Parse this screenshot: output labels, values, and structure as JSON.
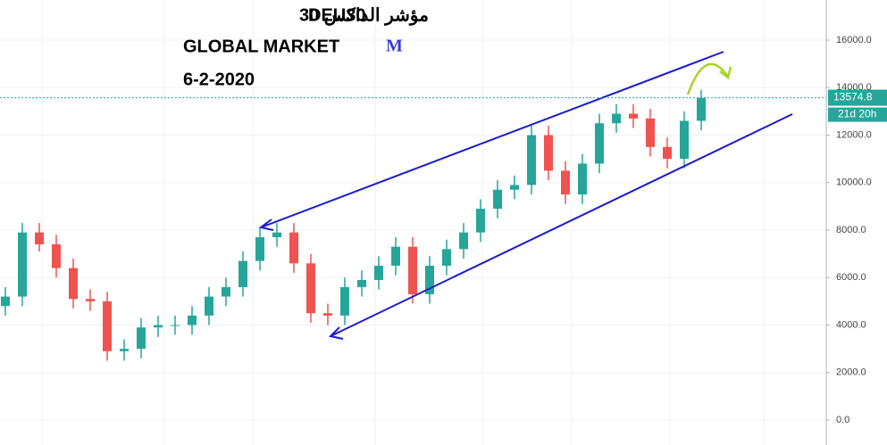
{
  "chart_data": {
    "type": "candlestick",
    "title": "DEU30",
    "title_arabic": "مؤشر الداكس 30",
    "subtitle": "GLOBAL MARKET",
    "logo": "M",
    "date": "6-2-2020",
    "open": [
      4800,
      5200,
      7900,
      7400,
      6400,
      5100,
      5000,
      2900,
      3000,
      3900,
      4000,
      4000,
      4400,
      5200,
      5600,
      6700,
      7700,
      7900,
      6600,
      4500,
      4400,
      5600,
      5900,
      6500,
      7300,
      5300,
      6500,
      7200,
      7900,
      8900,
      9700,
      9900,
      12000,
      10500,
      9500,
      10800,
      12500,
      12900,
      12700,
      11500,
      11000,
      12600
    ],
    "high": [
      5600,
      8300,
      8300,
      7800,
      6800,
      5500,
      5400,
      3400,
      4300,
      4400,
      4400,
      4800,
      5600,
      6000,
      7100,
      8100,
      8300,
      8300,
      7000,
      4900,
      6000,
      6300,
      6900,
      7700,
      7700,
      6900,
      7600,
      8300,
      9300,
      10100,
      10300,
      12400,
      12400,
      10900,
      11200,
      12900,
      13300,
      13300,
      13100,
      11900,
      13000,
      13900
    ],
    "low": [
      4400,
      4800,
      7100,
      6000,
      4700,
      4600,
      2500,
      2500,
      2600,
      3500,
      3600,
      3600,
      4000,
      4800,
      5200,
      6300,
      7300,
      6200,
      4100,
      4000,
      4000,
      5200,
      5500,
      6100,
      4900,
      4900,
      6100,
      6800,
      7500,
      8500,
      9300,
      9500,
      10100,
      9100,
      9100,
      10400,
      12100,
      12300,
      11100,
      10600,
      10600,
      12200
    ],
    "close": [
      5200,
      7900,
      7400,
      6400,
      5100,
      5000,
      2900,
      3000,
      3900,
      4000,
      4000,
      4400,
      5200,
      5600,
      6700,
      7700,
      7900,
      6600,
      4500,
      4400,
      5600,
      5900,
      6500,
      7300,
      5300,
      6500,
      7200,
      7900,
      8900,
      9700,
      9900,
      12000,
      10500,
      9500,
      10800,
      12500,
      12900,
      12700,
      11500,
      11000,
      12600,
      13570
    ],
    "up_color": "#26a69a",
    "down_color": "#ef5350",
    "last_price": 13574.8,
    "countdown": "21d 20h",
    "ylim": [
      -1050,
      17690
    ],
    "yticks": [
      {
        "value": 0,
        "label": "0.0"
      },
      {
        "value": 2000,
        "label": "2000.0"
      },
      {
        "value": 4000,
        "label": "4000.0"
      },
      {
        "value": 6000,
        "label": "6000.0"
      },
      {
        "value": 8000,
        "label": "8000.0"
      },
      {
        "value": 10000,
        "label": "10000.0"
      },
      {
        "value": 12000,
        "label": "12000.0"
      },
      {
        "value": 14000,
        "label": "14000.0"
      },
      {
        "value": 16000,
        "label": "16000.0"
      }
    ],
    "grid": true
  }
}
